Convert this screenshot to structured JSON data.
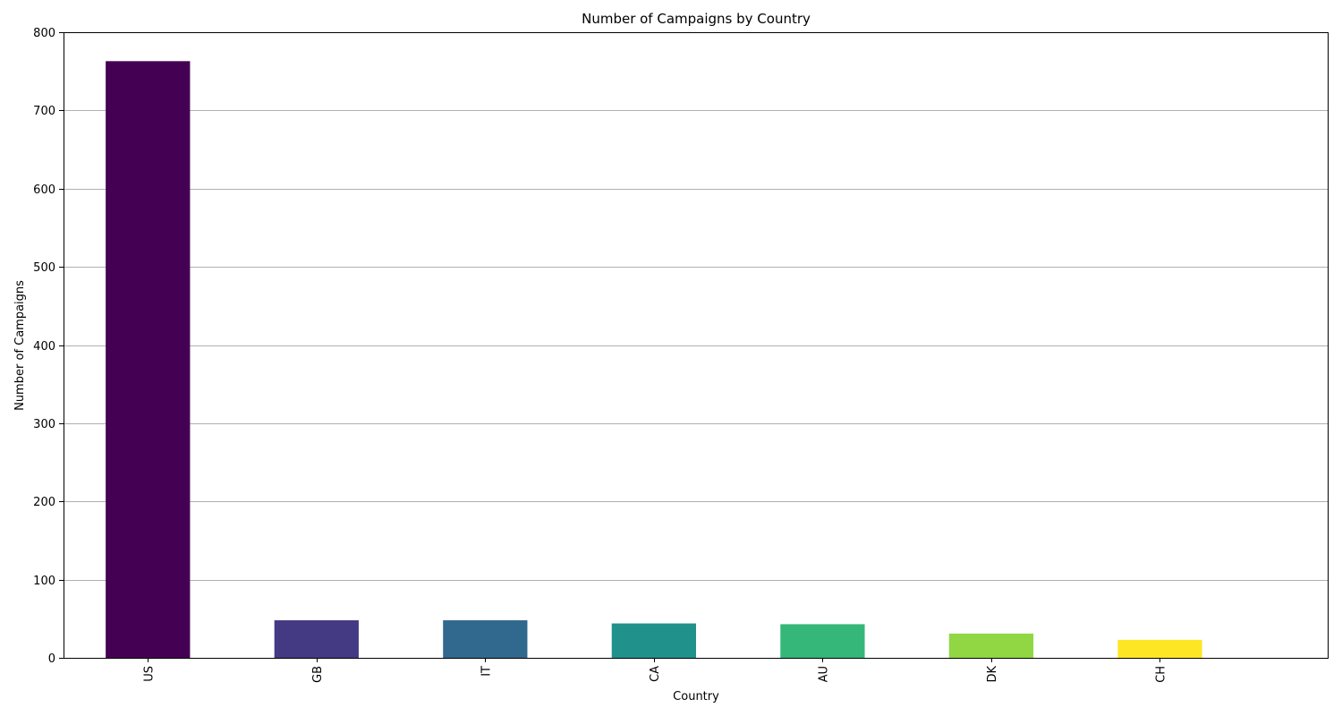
{
  "chart_data": {
    "type": "bar",
    "title": "Number of Campaigns by Country",
    "xlabel": "Country",
    "ylabel": "Number of Campaigns",
    "categories": [
      "US",
      "GB",
      "IT",
      "CA",
      "AU",
      "DK",
      "CH"
    ],
    "values": [
      763,
      48,
      48,
      44,
      43,
      31,
      23
    ],
    "colors": [
      "#440154",
      "#443983",
      "#31688e",
      "#21918c",
      "#35b779",
      "#90d743",
      "#fde725"
    ],
    "ylim": [
      0,
      800
    ],
    "yticks": [
      0,
      100,
      200,
      300,
      400,
      500,
      600,
      700,
      800
    ],
    "grid": "horizontal",
    "legend": "none"
  }
}
